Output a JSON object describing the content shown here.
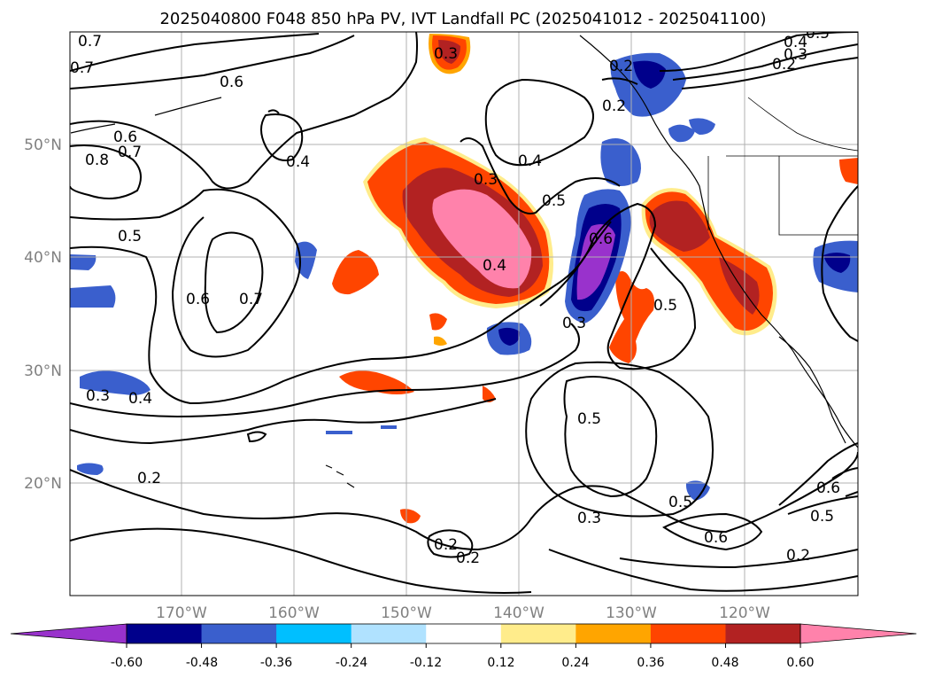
{
  "title": "2025040800 F048 850 hPa PV, IVT Landfall PC (2025041012 - 2025041100)",
  "lat_labels": [
    "50°N",
    "40°N",
    "30°N",
    "20°N"
  ],
  "lon_labels": [
    "170°W",
    "160°W",
    "150°W",
    "140°W",
    "130°W",
    "120°W"
  ],
  "colorbar": {
    "colors": [
      "#9932cc",
      "#00008b",
      "#3a5fcd",
      "#00bfff",
      "#b0e2ff",
      "#ffffff",
      "#ffec8b",
      "#ffa500",
      "#ff4500",
      "#b22222",
      "#ff82ab"
    ],
    "tick_labels": [
      "-0.60",
      "-0.48",
      "-0.36",
      "-0.24",
      "-0.12",
      "0.12",
      "0.24",
      "0.36",
      "0.48",
      "0.60"
    ],
    "extend": "both"
  },
  "contour_labels": [
    "0.7",
    "0.7",
    "0.6",
    "0.6",
    "0.7",
    "0.8",
    "0.4",
    "0.5",
    "0.6",
    "0.7",
    "0.3",
    "0.3",
    "0.4",
    "0.5",
    "0.4",
    "0.6",
    "0.3",
    "0.2",
    "0.2",
    "0.5",
    "0.5",
    "0.2",
    "0.2",
    "0.3",
    "0.5",
    "0.6",
    "0.6",
    "0.5",
    "0.2",
    "0.4",
    "0.3",
    "0.2",
    "0.4",
    "0.5",
    "0.3",
    "0.2"
  ]
}
